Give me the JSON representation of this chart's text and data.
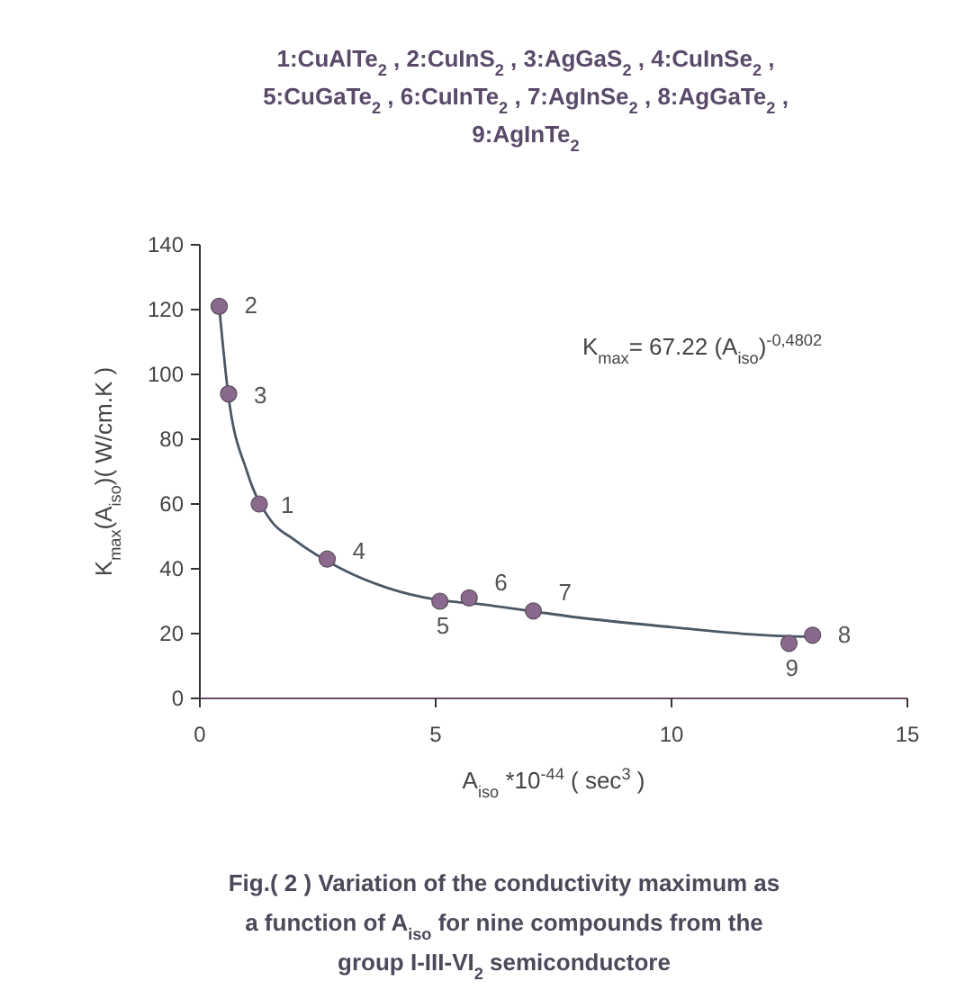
{
  "chart_data": {
    "type": "scatter",
    "title": "1:CuAlTe$_{2}$ , 2:CuInS$_{2}$ , 3:AgGaS$_{2}$ , 4:CuInSe$_{2}$ , 5:CuGaTe$_{2}$ , 6:CuInTe$_{2}$ , 7:AgInSe$_{2}$ , 8:AgGaTe$_{2}$ , 9:AgInTe$_{2}$",
    "xlabel": "A$_{iso}$ *10$^{-44}$ ( sec$^{3}$ )",
    "ylabel": "K$_{max}$(A$_{iso}$)( W/cm.K )",
    "xlim": [
      0,
      15
    ],
    "xticks": [
      0,
      5,
      10,
      15
    ],
    "ylim": [
      0,
      140
    ],
    "yticks": [
      0,
      20,
      40,
      60,
      80,
      100,
      120,
      140
    ],
    "grid": false,
    "series": [
      {
        "type": "line",
        "color": "#4a5866",
        "marker": "none",
        "line_style": "solid",
        "x": [
          0.41,
          0.6,
          1.0,
          1.5,
          2.0,
          3.0,
          4.0,
          5.0,
          6.0,
          7.0,
          8.0,
          10.0,
          12.0,
          13.0
        ],
        "values": [
          121,
          94,
          70,
          55,
          49,
          40,
          34,
          30.5,
          29,
          27,
          25,
          22,
          19.5,
          19
        ]
      },
      {
        "color": "#8a6a8c",
        "marker": "circle",
        "x": [
          1.26,
          0.41,
          0.61,
          2.7,
          5.09,
          5.71,
          7.07,
          12.99,
          12.49
        ],
        "values": [
          60,
          121,
          94,
          43,
          30,
          31,
          27,
          19.5,
          17
        ]
      }
    ],
    "annotations": [
      {
        "text": "1",
        "x": 1.26,
        "y": 60
      },
      {
        "text": "2",
        "x": 0.41,
        "y": 121
      },
      {
        "text": "3",
        "x": 0.61,
        "y": 94
      },
      {
        "text": "4",
        "x": 2.7,
        "y": 43
      },
      {
        "text": "5",
        "x": 5.09,
        "y": 30
      },
      {
        "text": "6",
        "x": 5.71,
        "y": 31
      },
      {
        "text": "7",
        "x": 7.07,
        "y": 27
      },
      {
        "text": "8",
        "x": 12.99,
        "y": 19.5
      },
      {
        "text": "9",
        "x": 12.49,
        "y": 17
      },
      "K$_{max}$= 67.22 (A$_{iso}$)$^{-0,4802}$",
      "Fig.( 2 ) Variation of the conductivity maximum as a function of A$_{iso}$ for nine compounds from the group I-III-VI$_{2}$ semiconductore"
    ]
  }
}
